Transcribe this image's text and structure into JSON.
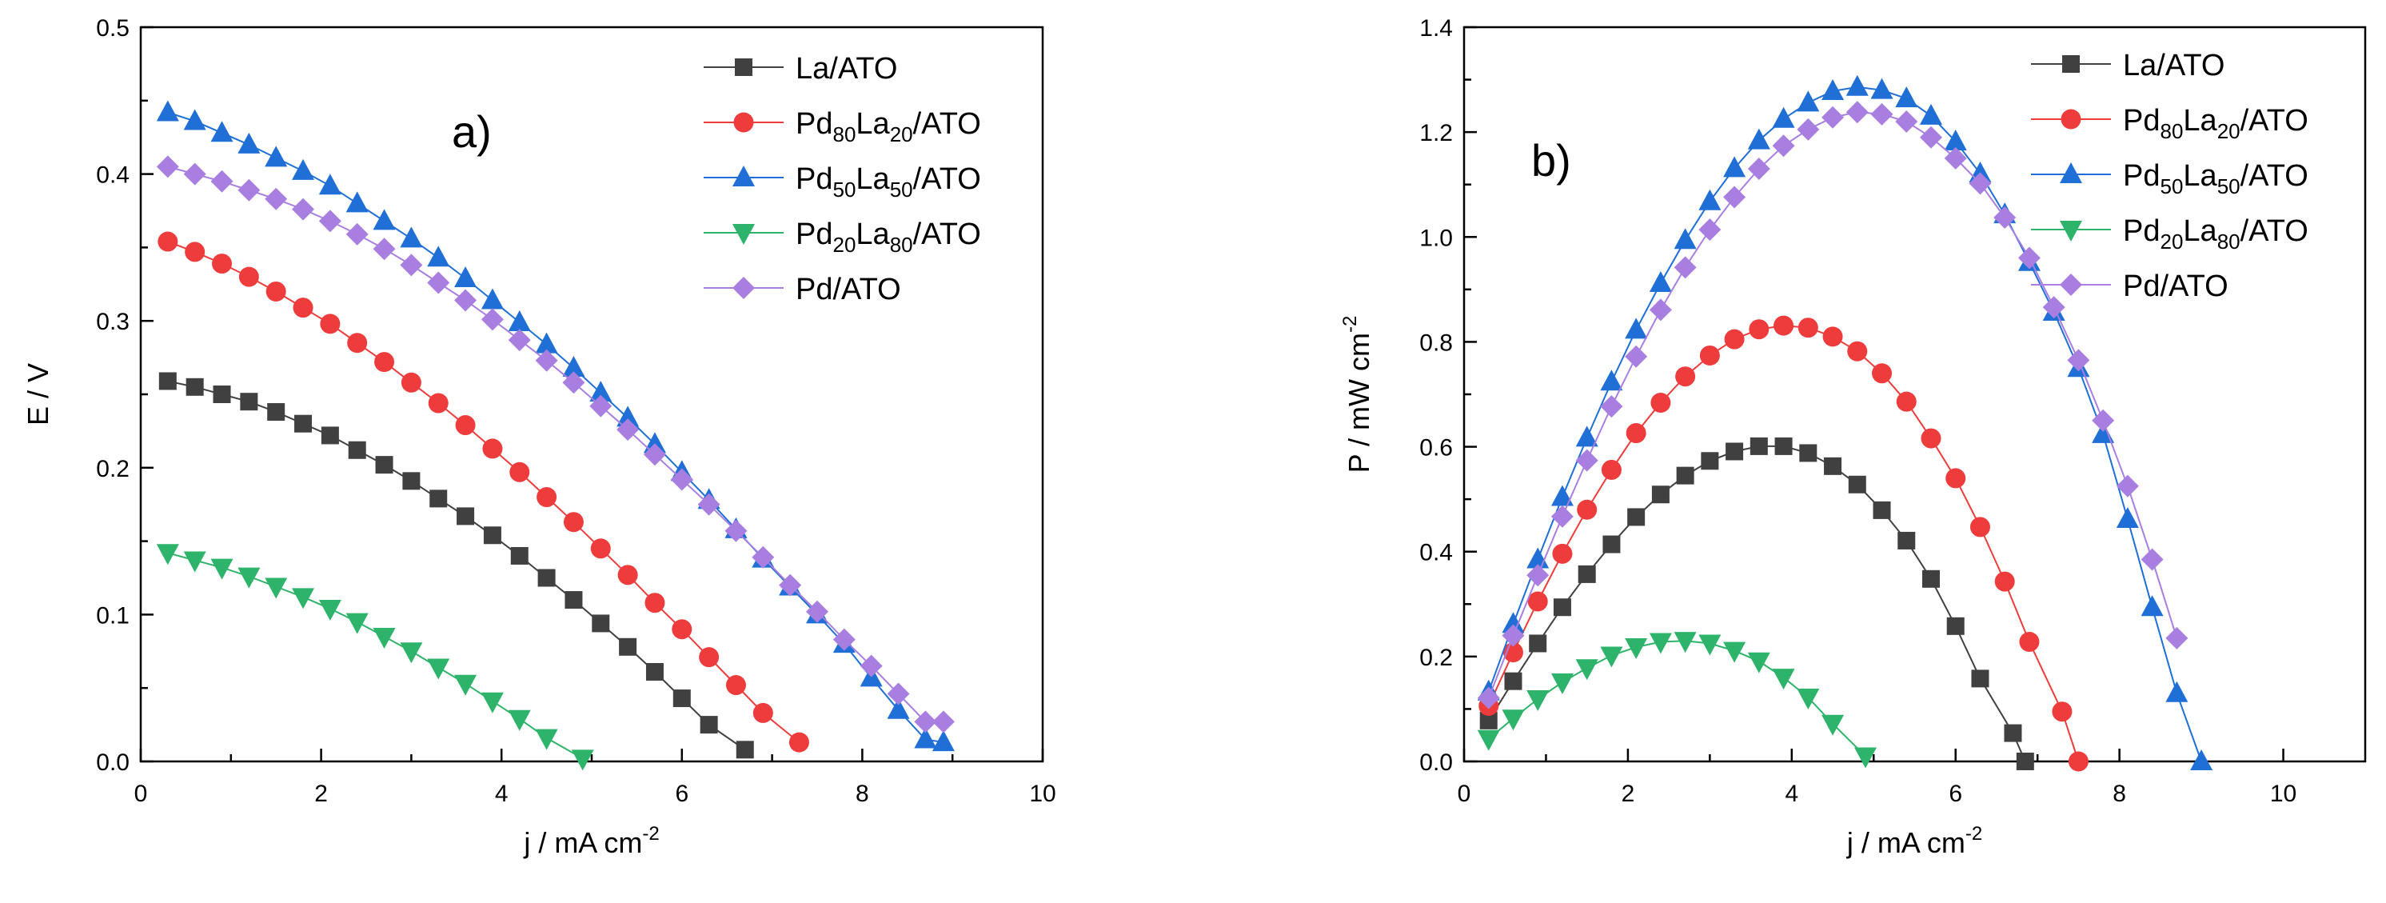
{
  "chart_data": [
    {
      "type": "scatter",
      "panel_label": "a)",
      "xlabel": "j / mA cm",
      "xlabel_sup": "-2",
      "ylabel": "E / V",
      "xlim": [
        0,
        10
      ],
      "ylim": [
        0,
        0.5
      ],
      "xticks": [
        "0",
        "2",
        "4",
        "6",
        "8",
        "10"
      ],
      "yticks": [
        "0.0",
        "0.1",
        "0.2",
        "0.3",
        "0.4",
        "0.5"
      ],
      "series": [
        {
          "name": "La/ATO",
          "legend": {
            "text": "La/ATO"
          },
          "color": "#404040",
          "marker": "square",
          "x": [
            0.3,
            0.6,
            0.9,
            1.2,
            1.5,
            1.8,
            2.1,
            2.4,
            2.7,
            3.0,
            3.3,
            3.6,
            3.9,
            4.2,
            4.5,
            4.8,
            5.1,
            5.4,
            5.7,
            6.0,
            6.3,
            6.7
          ],
          "y": [
            0.259,
            0.255,
            0.25,
            0.245,
            0.238,
            0.23,
            0.222,
            0.212,
            0.202,
            0.191,
            0.179,
            0.167,
            0.154,
            0.14,
            0.125,
            0.11,
            0.094,
            0.078,
            0.061,
            0.043,
            0.025,
            0.008
          ]
        },
        {
          "name": "Pd80La20/ATO",
          "legend": {
            "text": "Pd",
            "sub1": "80",
            "mid": "La",
            "sub2": "20",
            "suffix": "/ATO"
          },
          "color": "#ee3b3b",
          "marker": "circle",
          "x": [
            0.3,
            0.6,
            0.9,
            1.2,
            1.5,
            1.8,
            2.1,
            2.4,
            2.7,
            3.0,
            3.3,
            3.6,
            3.9,
            4.2,
            4.5,
            4.8,
            5.1,
            5.4,
            5.7,
            6.0,
            6.3,
            6.6,
            6.9,
            7.3
          ],
          "y": [
            0.354,
            0.347,
            0.339,
            0.33,
            0.32,
            0.309,
            0.298,
            0.285,
            0.272,
            0.258,
            0.244,
            0.229,
            0.213,
            0.197,
            0.18,
            0.163,
            0.145,
            0.127,
            0.108,
            0.09,
            0.071,
            0.052,
            0.033,
            0.013
          ]
        },
        {
          "name": "Pd50La50/ATO",
          "legend": {
            "text": "Pd",
            "sub1": "50",
            "mid": "La",
            "sub2": "50",
            "suffix": "/ATO"
          },
          "color": "#1f6fd6",
          "marker": "triangle-up",
          "x": [
            0.3,
            0.6,
            0.9,
            1.2,
            1.5,
            1.8,
            2.1,
            2.4,
            2.7,
            3.0,
            3.3,
            3.6,
            3.9,
            4.2,
            4.5,
            4.8,
            5.1,
            5.4,
            5.7,
            6.0,
            6.3,
            6.6,
            6.9,
            7.2,
            7.5,
            7.8,
            8.1,
            8.4,
            8.7,
            8.9
          ],
          "y": [
            0.442,
            0.436,
            0.428,
            0.42,
            0.411,
            0.402,
            0.392,
            0.38,
            0.368,
            0.356,
            0.343,
            0.329,
            0.314,
            0.299,
            0.284,
            0.268,
            0.251,
            0.234,
            0.216,
            0.197,
            0.178,
            0.158,
            0.138,
            0.119,
            0.1,
            0.08,
            0.057,
            0.035,
            0.015,
            0.013
          ]
        },
        {
          "name": "Pd20La80/ATO",
          "legend": {
            "text": "Pd",
            "sub1": "20",
            "mid": "La",
            "sub2": "80",
            "suffix": "/ATO"
          },
          "color": "#2eb36b",
          "marker": "triangle-down",
          "x": [
            0.3,
            0.6,
            0.9,
            1.2,
            1.5,
            1.8,
            2.1,
            2.4,
            2.7,
            3.0,
            3.3,
            3.6,
            3.9,
            4.2,
            4.5,
            4.9
          ],
          "y": [
            0.142,
            0.137,
            0.132,
            0.126,
            0.119,
            0.112,
            0.104,
            0.095,
            0.085,
            0.075,
            0.064,
            0.053,
            0.041,
            0.029,
            0.016,
            0.002
          ]
        },
        {
          "name": "Pd/ATO",
          "legend": {
            "text": "Pd/ATO"
          },
          "color": "#a87fe0",
          "marker": "diamond",
          "x": [
            0.3,
            0.6,
            0.9,
            1.2,
            1.5,
            1.8,
            2.1,
            2.4,
            2.7,
            3.0,
            3.3,
            3.6,
            3.9,
            4.2,
            4.5,
            4.8,
            5.1,
            5.4,
            5.7,
            6.0,
            6.3,
            6.6,
            6.9,
            7.2,
            7.5,
            7.8,
            8.1,
            8.4,
            8.7,
            8.9
          ],
          "y": [
            0.405,
            0.4,
            0.395,
            0.389,
            0.383,
            0.376,
            0.368,
            0.359,
            0.349,
            0.338,
            0.326,
            0.314,
            0.301,
            0.287,
            0.273,
            0.258,
            0.242,
            0.226,
            0.209,
            0.192,
            0.175,
            0.157,
            0.139,
            0.12,
            0.102,
            0.083,
            0.065,
            0.046,
            0.027,
            0.027
          ]
        }
      ]
    },
    {
      "type": "scatter",
      "panel_label": "b)",
      "xlabel": "j / mA cm",
      "xlabel_sup": "-2",
      "ylabel": "P / mW cm",
      "ylabel_sup": "-2",
      "xlim": [
        0,
        11
      ],
      "ylim": [
        0,
        1.4
      ],
      "xticks": [
        "0",
        "2",
        "4",
        "6",
        "8",
        "10"
      ],
      "xtick_values": [
        0,
        2,
        4,
        6,
        8,
        10
      ],
      "yticks": [
        "0.0",
        "0.2",
        "0.4",
        "0.6",
        "0.8",
        "1.0",
        "1.2",
        "1.4"
      ],
      "series": [
        {
          "name": "La/ATO",
          "legend": {
            "text": "La/ATO"
          },
          "color": "#404040",
          "marker": "square",
          "x": [
            0.3,
            0.6,
            0.9,
            1.2,
            1.5,
            1.8,
            2.1,
            2.4,
            2.7,
            3.0,
            3.3,
            3.6,
            3.9,
            4.2,
            4.5,
            4.8,
            5.1,
            5.4,
            5.7,
            6.0,
            6.3,
            6.7,
            6.85
          ],
          "y": [
            0.078,
            0.153,
            0.225,
            0.294,
            0.357,
            0.414,
            0.466,
            0.509,
            0.545,
            0.573,
            0.591,
            0.601,
            0.601,
            0.588,
            0.563,
            0.528,
            0.479,
            0.421,
            0.348,
            0.258,
            0.158,
            0.054,
            0.0
          ]
        },
        {
          "name": "Pd80La20/ATO",
          "legend": {
            "text": "Pd",
            "sub1": "80",
            "mid": "La",
            "sub2": "20",
            "suffix": "/ATO"
          },
          "color": "#ee3b3b",
          "marker": "circle",
          "x": [
            0.3,
            0.6,
            0.9,
            1.2,
            1.5,
            1.8,
            2.1,
            2.4,
            2.7,
            3.0,
            3.3,
            3.6,
            3.9,
            4.2,
            4.5,
            4.8,
            5.1,
            5.4,
            5.7,
            6.0,
            6.3,
            6.6,
            6.9,
            7.3,
            7.5
          ],
          "y": [
            0.106,
            0.208,
            0.305,
            0.396,
            0.48,
            0.556,
            0.626,
            0.684,
            0.734,
            0.774,
            0.805,
            0.824,
            0.831,
            0.827,
            0.81,
            0.782,
            0.74,
            0.686,
            0.616,
            0.54,
            0.447,
            0.343,
            0.228,
            0.095,
            0.0
          ]
        },
        {
          "name": "Pd50La50/ATO",
          "legend": {
            "text": "Pd",
            "sub1": "50",
            "mid": "La",
            "sub2": "50",
            "suffix": "/ATO"
          },
          "color": "#1f6fd6",
          "marker": "triangle-up",
          "x": [
            0.3,
            0.6,
            0.9,
            1.2,
            1.5,
            1.8,
            2.1,
            2.4,
            2.7,
            3.0,
            3.3,
            3.6,
            3.9,
            4.2,
            4.5,
            4.8,
            5.1,
            5.4,
            5.7,
            6.0,
            6.3,
            6.6,
            6.9,
            7.2,
            7.5,
            7.8,
            8.1,
            8.4,
            8.7,
            9.0
          ],
          "y": [
            0.133,
            0.262,
            0.385,
            0.504,
            0.617,
            0.724,
            0.823,
            0.912,
            0.994,
            1.068,
            1.131,
            1.184,
            1.225,
            1.256,
            1.278,
            1.286,
            1.28,
            1.264,
            1.231,
            1.182,
            1.121,
            1.043,
            0.952,
            0.857,
            0.75,
            0.624,
            0.462,
            0.294,
            0.13,
            0.0
          ]
        },
        {
          "name": "Pd20La80/ATO",
          "legend": {
            "text": "Pd",
            "sub1": "20",
            "mid": "La",
            "sub2": "80",
            "suffix": "/ATO"
          },
          "color": "#2eb36b",
          "marker": "triangle-down",
          "x": [
            0.3,
            0.6,
            0.9,
            1.2,
            1.5,
            1.8,
            2.1,
            2.4,
            2.7,
            3.0,
            3.3,
            3.6,
            3.9,
            4.2,
            4.5,
            4.9
          ],
          "y": [
            0.043,
            0.082,
            0.119,
            0.151,
            0.178,
            0.202,
            0.218,
            0.228,
            0.23,
            0.225,
            0.211,
            0.191,
            0.16,
            0.122,
            0.072,
            0.01
          ]
        },
        {
          "name": "Pd/ATO",
          "legend": {
            "text": "Pd/ATO"
          },
          "color": "#a87fe0",
          "marker": "diamond",
          "x": [
            0.3,
            0.6,
            0.9,
            1.2,
            1.5,
            1.8,
            2.1,
            2.4,
            2.7,
            3.0,
            3.3,
            3.6,
            3.9,
            4.2,
            4.5,
            4.8,
            5.1,
            5.4,
            5.7,
            6.0,
            6.3,
            6.6,
            6.9,
            7.2,
            7.5,
            7.8,
            8.1,
            8.4,
            8.7
          ],
          "y": [
            0.121,
            0.24,
            0.355,
            0.467,
            0.574,
            0.677,
            0.772,
            0.861,
            0.942,
            1.014,
            1.076,
            1.13,
            1.174,
            1.205,
            1.228,
            1.238,
            1.234,
            1.22,
            1.19,
            1.15,
            1.102,
            1.037,
            0.96,
            0.866,
            0.765,
            0.65,
            0.525,
            0.385,
            0.235
          ]
        }
      ]
    }
  ]
}
